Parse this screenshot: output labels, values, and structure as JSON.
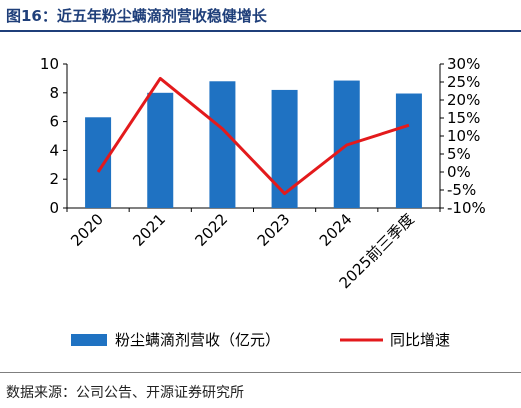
{
  "title": "图16：近五年粉尘螨滴剂营收稳健增长",
  "source": "数据来源：公司公告、开源证券研究所",
  "colors": {
    "bar": "#1f72c2",
    "line": "#e31a1c",
    "title": "#1f3f7a"
  },
  "chart_data": {
    "type": "bar+line",
    "categories": [
      "2020",
      "2021",
      "2022",
      "2023",
      "2024",
      "2025前三季度"
    ],
    "series": [
      {
        "name": "粉尘螨滴剂营收（亿元）",
        "type": "bar",
        "axis": "left",
        "values": [
          6.3,
          8.0,
          8.8,
          8.2,
          8.85,
          7.95
        ]
      },
      {
        "name": "同比增速",
        "type": "line",
        "axis": "right",
        "values": [
          0,
          26,
          12,
          -6,
          7.5,
          13
        ]
      }
    ],
    "y_left": {
      "min": 0,
      "max": 10,
      "ticks": [
        "0",
        "2",
        "4",
        "6",
        "8",
        "10"
      ]
    },
    "y_right": {
      "min": -10,
      "max": 30,
      "ticks": [
        "-10%",
        "-5%",
        "0%",
        "5%",
        "10%",
        "15%",
        "20%",
        "25%",
        "30%"
      ]
    },
    "legend_position": "bottom"
  }
}
